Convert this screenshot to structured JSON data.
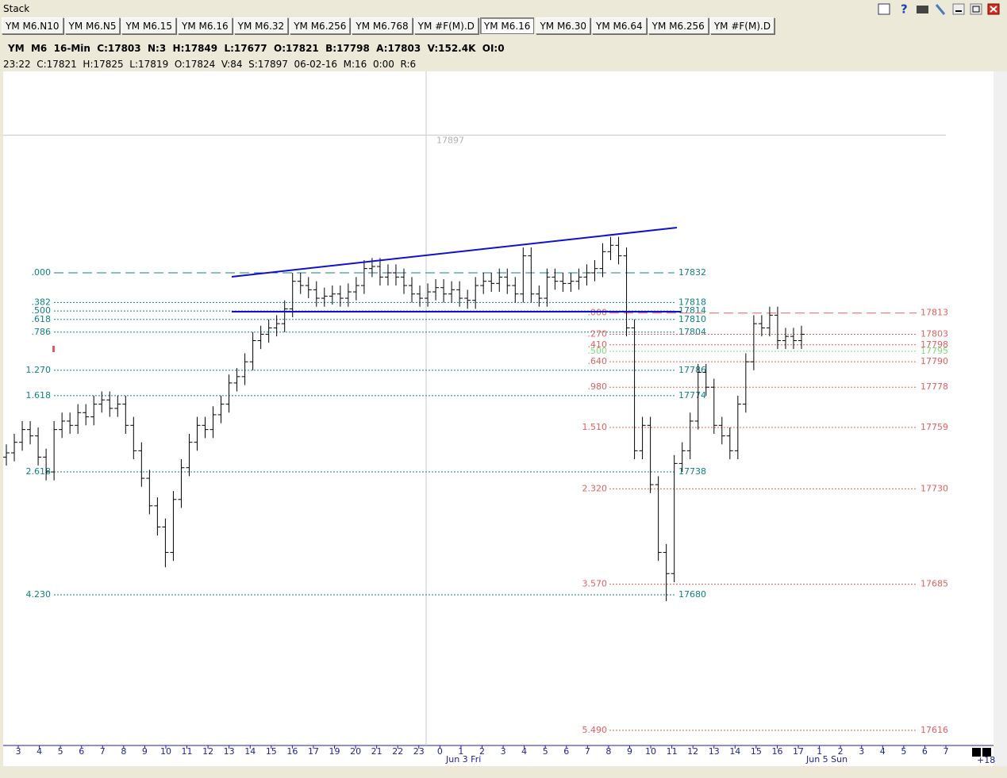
{
  "window": {
    "title": "Stack"
  },
  "tabs": [
    "YM M6.N10",
    "YM M6.N5",
    "YM M6.15",
    "YM M6.16",
    "YM M6.32",
    "YM M6.256",
    "YM M6.768",
    "YM #F(M).D",
    "YM M6.16",
    "YM M6.30",
    "YM M6.64",
    "YM M6.256",
    "YM #F(M).D"
  ],
  "header": {
    "line1": "YM  M6  16-Min  C:17803  N:3  H:17849  L:17677  O:17821  B:17798  A:17803  V:152.4K  OI:0",
    "line2": "23:22  C:17821  H:17825  L:17819  O:17824  V:84  S:17897  06-02-16  M:16  0:00  R:6"
  },
  "chart_data": {
    "type": "ohlc",
    "ylim": [
      17609.6,
      17927.1
    ],
    "cursor_price": 17897,
    "left_levels": [
      {
        "label": ".000",
        "value": 17832
      },
      {
        "label": ".382",
        "value": 17818
      },
      {
        "label": ".500",
        "value": 17814
      },
      {
        "label": ".618",
        "value": 17810
      },
      {
        "label": ".786",
        "value": 17804
      },
      {
        "label": "1.270",
        "value": 17786
      },
      {
        "label": "1.618",
        "value": 17774
      },
      {
        "label": "2.618",
        "value": 17738
      },
      {
        "label": "4.230",
        "value": 17680
      }
    ],
    "right_levels": [
      {
        "label": ".000",
        "value": 17813
      },
      {
        "label": ".270",
        "value": 17803
      },
      {
        "label": ".410",
        "value": 17798
      },
      {
        "label": ".500",
        "value": 17795
      },
      {
        "label": ".640",
        "value": 17790
      },
      {
        "label": ".980",
        "value": 17778
      },
      {
        "label": "1.510",
        "value": 17759
      },
      {
        "label": "2.320",
        "value": 17730
      },
      {
        "label": "3.570",
        "value": 17685
      },
      {
        "label": "5.490",
        "value": 17616
      }
    ],
    "x_labels": [
      "3",
      "4",
      "5",
      "6",
      "7",
      "8",
      "9",
      "10",
      "11",
      "12",
      "13",
      "14",
      "15",
      "16",
      "17",
      "19",
      "20",
      "21",
      "22",
      "23",
      "0",
      "1",
      "2",
      "3",
      "4",
      "5",
      "6",
      "7",
      "8",
      "9",
      "10",
      "11",
      "12",
      "13",
      "14",
      "15",
      "16",
      "17",
      "1",
      "2",
      "3",
      "4",
      "5",
      "6",
      "7"
    ],
    "date_labels": [
      "Jun 3 Fri",
      "Jun 5 Sun"
    ],
    "scroll_label": "+18",
    "bars": [
      [
        17745,
        17751,
        17741,
        17747
      ],
      [
        17747,
        17756,
        17743,
        17752
      ],
      [
        17752,
        17762,
        17748,
        17758
      ],
      [
        17758,
        17762,
        17751,
        17755
      ],
      [
        17755,
        17759,
        17741,
        17745
      ],
      [
        17745,
        17749,
        17734,
        17738
      ],
      [
        17738,
        17762,
        17734,
        17758
      ],
      [
        17758,
        17766,
        17754,
        17762
      ],
      [
        17762,
        17766,
        17756,
        17760
      ],
      [
        17760,
        17770,
        17756,
        17766
      ],
      [
        17766,
        17770,
        17760,
        17764
      ],
      [
        17764,
        17774,
        17760,
        17770
      ],
      [
        17770,
        17776,
        17766,
        17772
      ],
      [
        17772,
        17776,
        17764,
        17768
      ],
      [
        17768,
        17774,
        17764,
        17770
      ],
      [
        17770,
        17774,
        17756,
        17760
      ],
      [
        17760,
        17764,
        17744,
        17748
      ],
      [
        17748,
        17752,
        17731,
        17735
      ],
      [
        17735,
        17739,
        17718,
        17722
      ],
      [
        17722,
        17726,
        17708,
        17712
      ],
      [
        17712,
        17716,
        17693,
        17700
      ],
      [
        17700,
        17729,
        17696,
        17725
      ],
      [
        17725,
        17744,
        17721,
        17740
      ],
      [
        17740,
        17756,
        17736,
        17752
      ],
      [
        17752,
        17764,
        17748,
        17760
      ],
      [
        17760,
        17764,
        17754,
        17758
      ],
      [
        17758,
        17769,
        17754,
        17765
      ],
      [
        17765,
        17774,
        17761,
        17770
      ],
      [
        17770,
        17784,
        17766,
        17780
      ],
      [
        17780,
        17787,
        17776,
        17783
      ],
      [
        17783,
        17794,
        17779,
        17790
      ],
      [
        17790,
        17804,
        17786,
        17800
      ],
      [
        17800,
        17807,
        17796,
        17803
      ],
      [
        17803,
        17810,
        17799,
        17806
      ],
      [
        17806,
        17812,
        17802,
        17808
      ],
      [
        17808,
        17819,
        17804,
        17815
      ],
      [
        17815,
        17832,
        17811,
        17828
      ],
      [
        17828,
        17832,
        17822,
        17826
      ],
      [
        17826,
        17830,
        17820,
        17824
      ],
      [
        17824,
        17828,
        17816,
        17820
      ],
      [
        17820,
        17825,
        17816,
        17821
      ],
      [
        17821,
        17826,
        17817,
        17822
      ],
      [
        17822,
        17826,
        17816,
        17820
      ],
      [
        17820,
        17827,
        17816,
        17823
      ],
      [
        17823,
        17830,
        17819,
        17826
      ],
      [
        17826,
        17838,
        17822,
        17834
      ],
      [
        17834,
        17839,
        17830,
        17835
      ],
      [
        17835,
        17839,
        17826,
        17830
      ],
      [
        17830,
        17836,
        17826,
        17832
      ],
      [
        17832,
        17836,
        17826,
        17830
      ],
      [
        17830,
        17834,
        17822,
        17826
      ],
      [
        17826,
        17830,
        17818,
        17822
      ],
      [
        17822,
        17826,
        17816,
        17820
      ],
      [
        17820,
        17827,
        17816,
        17823
      ],
      [
        17823,
        17829,
        17819,
        17825
      ],
      [
        17825,
        17829,
        17818,
        17822
      ],
      [
        17822,
        17828,
        17818,
        17824
      ],
      [
        17824,
        17828,
        17816,
        17820
      ],
      [
        17820,
        17824,
        17815,
        17819
      ],
      [
        17819,
        17830,
        17815,
        17826
      ],
      [
        17826,
        17832,
        17822,
        17828
      ],
      [
        17828,
        17832,
        17823,
        17827
      ],
      [
        17827,
        17834,
        17823,
        17830
      ],
      [
        17830,
        17834,
        17822,
        17826
      ],
      [
        17826,
        17830,
        17818,
        17822
      ],
      [
        17822,
        17844,
        17818,
        17840
      ],
      [
        17840,
        17844,
        17818,
        17822
      ],
      [
        17822,
        17826,
        17816,
        17820
      ],
      [
        17820,
        17834,
        17816,
        17830
      ],
      [
        17830,
        17834,
        17824,
        17828
      ],
      [
        17828,
        17832,
        17823,
        17827
      ],
      [
        17827,
        17832,
        17823,
        17828
      ],
      [
        17828,
        17834,
        17824,
        17830
      ],
      [
        17830,
        17836,
        17826,
        17832
      ],
      [
        17832,
        17838,
        17828,
        17834
      ],
      [
        17834,
        17846,
        17830,
        17842
      ],
      [
        17842,
        17849,
        17838,
        17845
      ],
      [
        17845,
        17849,
        17836,
        17840
      ],
      [
        17840,
        17844,
        17802,
        17806
      ],
      [
        17806,
        17810,
        17744,
        17748
      ],
      [
        17748,
        17764,
        17744,
        17760
      ],
      [
        17760,
        17764,
        17728,
        17732
      ],
      [
        17732,
        17736,
        17696,
        17700
      ],
      [
        17700,
        17704,
        17677,
        17690
      ],
      [
        17690,
        17746,
        17686,
        17742
      ],
      [
        17742,
        17752,
        17738,
        17748
      ],
      [
        17748,
        17766,
        17744,
        17762
      ],
      [
        17762,
        17789,
        17758,
        17785
      ],
      [
        17785,
        17789,
        17774,
        17778
      ],
      [
        17778,
        17782,
        17756,
        17760
      ],
      [
        17760,
        17764,
        17751,
        17755
      ],
      [
        17755,
        17759,
        17744,
        17748
      ],
      [
        17748,
        17774,
        17744,
        17770
      ],
      [
        17770,
        17794,
        17766,
        17790
      ],
      [
        17790,
        17812,
        17786,
        17808
      ],
      [
        17808,
        17812,
        17802,
        17806
      ],
      [
        17806,
        17816,
        17802,
        17812
      ],
      [
        17812,
        17816,
        17796,
        17800
      ],
      [
        17800,
        17806,
        17796,
        17802
      ],
      [
        17802,
        17806,
        17796,
        17800
      ],
      [
        17800,
        17807,
        17796,
        17803
      ]
    ]
  }
}
